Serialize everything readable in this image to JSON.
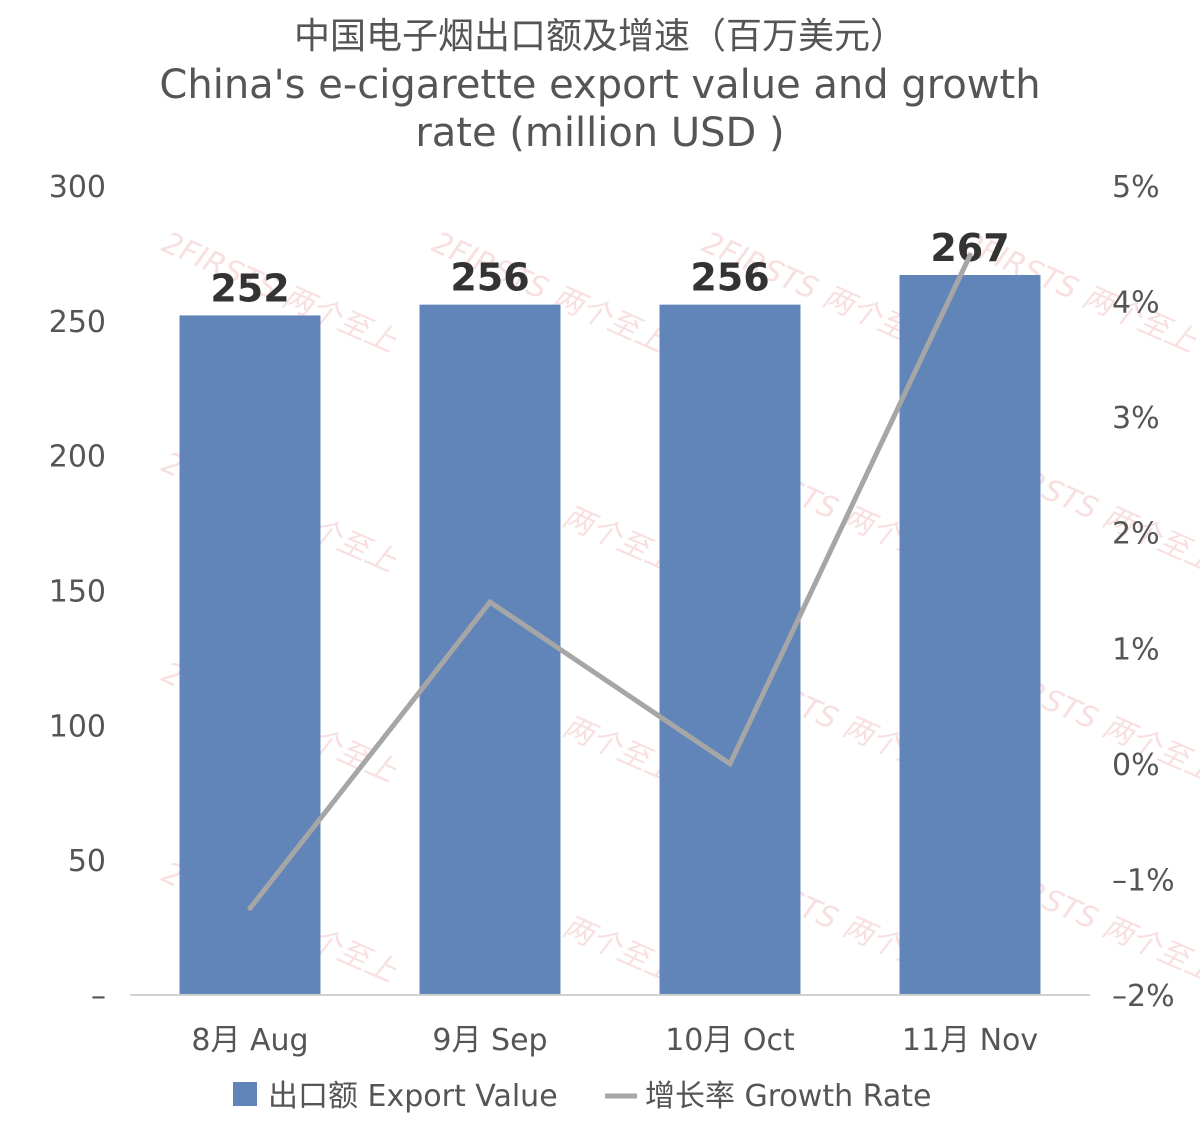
{
  "title": {
    "line1": "中国电子烟出口额及增速（百万美元）",
    "line2": "China's e-cigarette export value and growth",
    "line3": "rate (million USD )"
  },
  "chart_data": {
    "type": "bar",
    "categories": [
      "8月 Aug",
      "9月 Sep",
      "10月 Oct",
      "11月 Nov"
    ],
    "series": [
      {
        "name": "出口额 Export Value",
        "type": "bar",
        "axis": "left",
        "values": [
          252,
          256,
          256,
          267
        ],
        "color": "#6185b8"
      },
      {
        "name": "增长率 Growth Rate",
        "type": "line",
        "axis": "right",
        "values": [
          -1.25,
          1.4,
          0.0,
          4.4
        ],
        "color": "#a6a6a6"
      }
    ],
    "data_labels": [
      "252",
      "256",
      "256",
      "267"
    ],
    "y_left": {
      "min": 0,
      "max": 300,
      "ticks": [
        0,
        50,
        100,
        150,
        200,
        250,
        300
      ],
      "tick_labels": [
        "–",
        "50",
        "100",
        "150",
        "200",
        "250",
        "300"
      ]
    },
    "y_right": {
      "min": -2,
      "max": 5,
      "ticks": [
        -2,
        -1,
        0,
        1,
        2,
        3,
        4,
        5
      ],
      "tick_labels": [
        "–2%",
        "–1%",
        "0%",
        "1%",
        "2%",
        "3%",
        "4%",
        "5%"
      ]
    },
    "grid": false,
    "legend_position": "bottom",
    "watermark": "2FIRSTS 两个至上"
  }
}
